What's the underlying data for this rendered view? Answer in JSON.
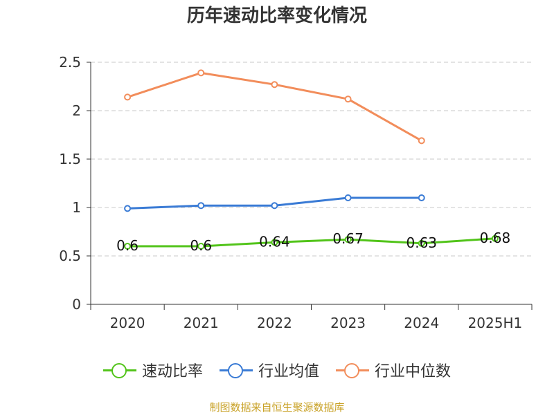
{
  "title": "历年速动比率变化情况",
  "source_note": "制图数据来自恒生聚源数据库",
  "chart_data": {
    "type": "line",
    "title": "历年速动比率变化情况",
    "xlabel": "",
    "ylabel": "",
    "categories": [
      "2020",
      "2021",
      "2022",
      "2023",
      "2024",
      "2025H1"
    ],
    "ylim": [
      0,
      2.5
    ],
    "yticks": [
      0,
      0.5,
      1,
      1.5,
      2,
      2.5
    ],
    "ytick_labels": [
      "0",
      "0.5",
      "1",
      "1.5",
      "2",
      "2.5"
    ],
    "grid": true,
    "legend_position": "bottom",
    "series": [
      {
        "name": "速动比率",
        "color": "#52c41a",
        "values": [
          0.6,
          0.6,
          0.64,
          0.67,
          0.63,
          0.68
        ],
        "labels": [
          "0.6",
          "0.6",
          "0.64",
          "0.67",
          "0.63",
          "0.68"
        ],
        "show_labels": true
      },
      {
        "name": "行业均值",
        "color": "#3a7bd5",
        "values": [
          0.99,
          1.02,
          1.02,
          1.1,
          1.1,
          null
        ],
        "show_labels": false
      },
      {
        "name": "行业中位数",
        "color": "#f28d5b",
        "values": [
          2.14,
          2.39,
          2.27,
          2.12,
          1.69,
          null
        ],
        "show_labels": false
      }
    ]
  }
}
